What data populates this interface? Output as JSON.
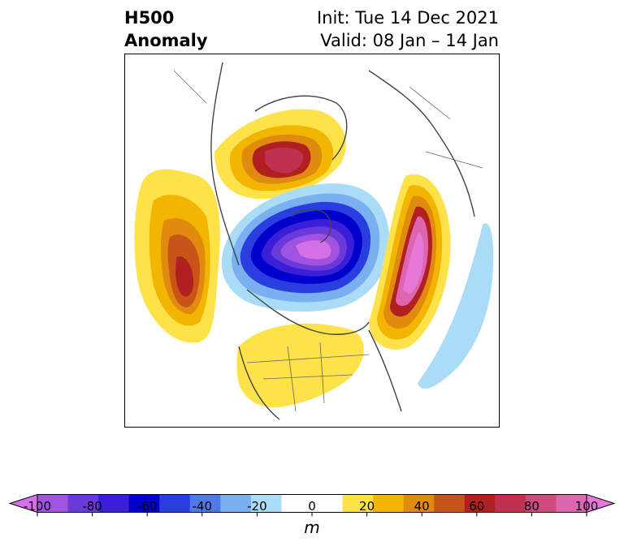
{
  "title": {
    "left_line1": "H500",
    "left_line2": "Anomaly",
    "right_line1": "Init: Tue 14 Dec 2021",
    "right_line2": "Valid: 08 Jan – 14 Jan"
  },
  "colorbar": {
    "units": "m",
    "ticks": [
      "-100",
      "-80",
      "-60",
      "-40",
      "-20",
      "0",
      "20",
      "40",
      "60",
      "80",
      "100"
    ],
    "colors": [
      "#d670e8",
      "#a052e0",
      "#6a3ad8",
      "#3a1ed8",
      "#0000cc",
      "#2a3ee0",
      "#4e7ae8",
      "#7ab0f0",
      "#aadcf8",
      "#ffffff",
      "#ffffff",
      "#fde24a",
      "#f2b600",
      "#e08a10",
      "#c85418",
      "#b02020",
      "#c03050",
      "#d04a80",
      "#de66b0",
      "#e878d8"
    ],
    "value_range": [
      -100,
      100
    ]
  },
  "map": {
    "projection": "north-polar-stereographic",
    "features": [
      "coastlines",
      "country-borders",
      "state-borders"
    ],
    "anomaly_features": [
      {
        "label": "positive-anomaly-north-pacific",
        "peak": 60
      },
      {
        "label": "positive-anomaly-greenland-canada",
        "peak": 60
      },
      {
        "label": "negative-anomaly-arctic-siberia",
        "peak": -100
      },
      {
        "label": "positive-anomaly-europe-atlantic",
        "peak": 100
      },
      {
        "label": "positive-anomaly-continental-us",
        "peak": 20
      },
      {
        "label": "negative-anomaly-central-atlantic",
        "peak": -20
      }
    ]
  }
}
